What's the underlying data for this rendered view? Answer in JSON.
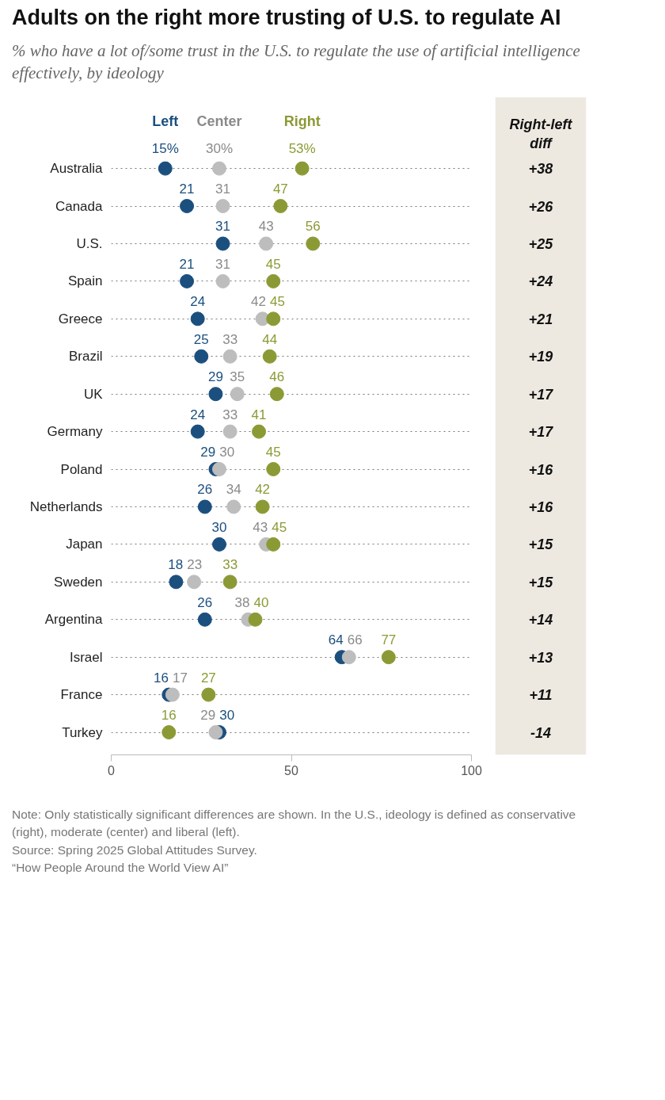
{
  "chart_data": [
    {
      "type": "scatter",
      "orientation": "horizontal",
      "title": "Adults on the right more trusting of U.S. to regulate AI",
      "subtitle": "% who have a lot of/some trust in the U.S. to regulate the use of artificial intelligence effectively, by ideology",
      "categories": [
        "Australia",
        "Canada",
        "U.S.",
        "Spain",
        "Greece",
        "Brazil",
        "UK",
        "Germany",
        "Poland",
        "Netherlands",
        "Japan",
        "Sweden",
        "Argentina",
        "Israel",
        "France",
        "Turkey"
      ],
      "series": [
        {
          "name": "Left",
          "color": "#1b4f7e",
          "values": [
            15,
            21,
            31,
            21,
            24,
            25,
            29,
            24,
            29,
            26,
            30,
            18,
            26,
            64,
            16,
            30
          ],
          "value_labels": [
            "15%",
            "21",
            "31",
            "21",
            "24",
            "25",
            "29",
            "24",
            "29",
            "26",
            "30",
            "18",
            "26",
            "64",
            "16",
            "30"
          ]
        },
        {
          "name": "Center",
          "color": "#bdbdbd",
          "values": [
            30,
            31,
            43,
            31,
            42,
            33,
            35,
            33,
            30,
            34,
            43,
            23,
            38,
            66,
            17,
            29
          ],
          "value_labels": [
            "30%",
            "31",
            "43",
            "31",
            "42",
            "33",
            "35",
            "33",
            "30",
            "34",
            "43",
            "23",
            "38",
            "66",
            "17",
            "29"
          ]
        },
        {
          "name": "Right",
          "color": "#8c9a35",
          "values": [
            53,
            47,
            56,
            45,
            45,
            44,
            46,
            41,
            45,
            42,
            45,
            33,
            40,
            77,
            27,
            16
          ],
          "value_labels": [
            "53%",
            "47",
            "56",
            "45",
            "45",
            "44",
            "46",
            "41",
            "45",
            "42",
            "45",
            "33",
            "40",
            "77",
            "27",
            "16"
          ]
        }
      ],
      "xlim": [
        0,
        100
      ],
      "xticks": [
        0,
        50,
        100
      ],
      "grid": "y",
      "line_style": "dotted",
      "marker": "circle",
      "legend": "top",
      "annotations": [
        "Note: Only statistically significant differences are shown. In the U.S., ideology is defined as conservative (right), moderate (center) and liberal (left).",
        "Source: Spring 2025 Global Attitudes Survey.",
        "“How People Around the World View AI”"
      ]
    },
    {
      "type": "other",
      "title": "Right-left diff",
      "color": "#ede9e1",
      "value_labels": [
        "+38",
        "+26",
        "+25",
        "+24",
        "+21",
        "+19",
        "+17",
        "+17",
        "+16",
        "+16",
        "+15",
        "+15",
        "+14",
        "+13",
        "+11",
        "-14"
      ]
    }
  ]
}
